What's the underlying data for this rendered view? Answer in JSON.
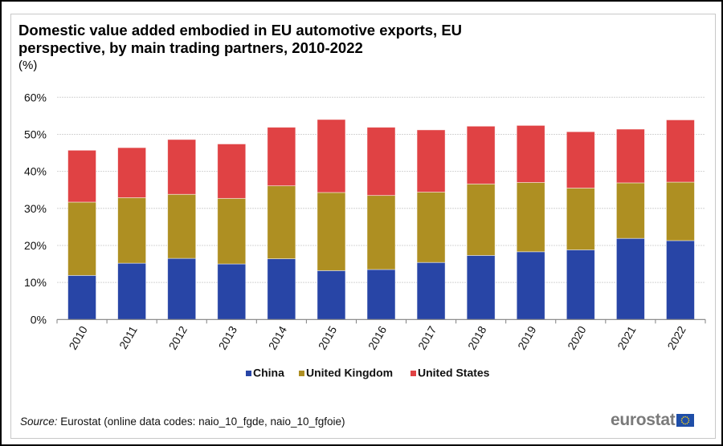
{
  "header": {
    "title": "Domestic value added embodied in EU automotive exports, EU perspective, by main trading partners, 2010-2022",
    "unit": "(%)"
  },
  "footer": {
    "source_label": "Source:",
    "source_text": " Eurostat (online data codes: naio_10_fgde, naio_10_fgfoie)",
    "logo_text": "eurostat"
  },
  "colors": {
    "China": "#2845a6",
    "United Kingdom": "#ae8f22",
    "United States": "#e04244",
    "grid": "#d4d4d4",
    "axis": "#808080"
  },
  "chart_data": {
    "type": "bar",
    "stacked": true,
    "title": "Domestic value added embodied in EU automotive exports, EU perspective, by main trading partners, 2010-2022",
    "subtitle": "(%)",
    "xlabel": "",
    "ylabel": "",
    "ylim": [
      0,
      60
    ],
    "yticks": [
      0,
      10,
      20,
      30,
      40,
      50,
      60
    ],
    "ytick_labels": [
      "0%",
      "10%",
      "20%",
      "30%",
      "40%",
      "50%",
      "60%"
    ],
    "grid": true,
    "legend_position": "bottom-center",
    "categories": [
      "2010",
      "2011",
      "2012",
      "2013",
      "2014",
      "2015",
      "2016",
      "2017",
      "2018",
      "2019",
      "2020",
      "2021",
      "2022"
    ],
    "series": [
      {
        "name": "China",
        "values": [
          11.9,
          15.2,
          16.5,
          15.0,
          16.4,
          13.2,
          13.5,
          15.4,
          17.3,
          18.3,
          18.8,
          21.9,
          21.3
        ]
      },
      {
        "name": "United Kingdom",
        "values": [
          19.8,
          17.7,
          17.3,
          17.7,
          19.7,
          21.1,
          20.0,
          19.0,
          19.3,
          18.7,
          16.7,
          15.0,
          15.8
        ]
      },
      {
        "name": "United States",
        "values": [
          14.0,
          13.5,
          14.8,
          14.7,
          15.8,
          19.7,
          18.4,
          16.8,
          15.6,
          15.4,
          15.2,
          14.5,
          16.8
        ]
      }
    ]
  }
}
